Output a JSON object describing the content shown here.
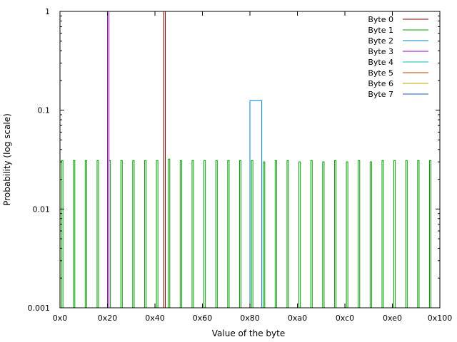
{
  "chart_data": {
    "type": "line",
    "title": "",
    "xlabel": "Value of the byte",
    "ylabel": "Probability (log scale)",
    "x_scale": "linear",
    "y_scale": "log",
    "xlim": [
      0,
      256
    ],
    "ylim": [
      0.001,
      1
    ],
    "x_ticks": [
      {
        "value": 0,
        "label": "0x0"
      },
      {
        "value": 32,
        "label": "0x20"
      },
      {
        "value": 64,
        "label": "0x40"
      },
      {
        "value": 96,
        "label": "0x60"
      },
      {
        "value": 128,
        "label": "0x80"
      },
      {
        "value": 160,
        "label": "0xa0"
      },
      {
        "value": 192,
        "label": "0xc0"
      },
      {
        "value": 224,
        "label": "0xe0"
      },
      {
        "value": 256,
        "label": "0x100"
      }
    ],
    "y_ticks": [
      {
        "value": 0.001,
        "label": "0.001"
      },
      {
        "value": 0.01,
        "label": "0.01"
      },
      {
        "value": 0.1,
        "label": "0.1"
      },
      {
        "value": 1,
        "label": "1"
      }
    ],
    "grid": false,
    "legend_position": "top-right",
    "series": [
      {
        "name": "Byte 0",
        "color": "#800000",
        "spikes": [
          {
            "x_start": 70,
            "x_end": 71,
            "y": 1.0
          }
        ]
      },
      {
        "name": "Byte 1",
        "color": "#00a000",
        "spikes": [
          {
            "x_start": 1,
            "x_end": 2,
            "y": 0.031
          },
          {
            "x_start": 9,
            "x_end": 10,
            "y": 0.031
          },
          {
            "x_start": 17,
            "x_end": 18,
            "y": 0.031
          },
          {
            "x_start": 25,
            "x_end": 26,
            "y": 0.031
          },
          {
            "x_start": 33,
            "x_end": 34,
            "y": 0.031
          },
          {
            "x_start": 41,
            "x_end": 42,
            "y": 0.031
          },
          {
            "x_start": 49,
            "x_end": 50,
            "y": 0.031
          },
          {
            "x_start": 57,
            "x_end": 58,
            "y": 0.031
          },
          {
            "x_start": 65,
            "x_end": 66,
            "y": 0.031
          },
          {
            "x_start": 73,
            "x_end": 74,
            "y": 0.032
          },
          {
            "x_start": 81,
            "x_end": 82,
            "y": 0.031
          },
          {
            "x_start": 89,
            "x_end": 90,
            "y": 0.031
          },
          {
            "x_start": 97,
            "x_end": 98,
            "y": 0.031
          },
          {
            "x_start": 105,
            "x_end": 106,
            "y": 0.031
          },
          {
            "x_start": 113,
            "x_end": 114,
            "y": 0.031
          },
          {
            "x_start": 121,
            "x_end": 122,
            "y": 0.031
          },
          {
            "x_start": 129,
            "x_end": 130,
            "y": 0.031
          },
          {
            "x_start": 137,
            "x_end": 138,
            "y": 0.03
          },
          {
            "x_start": 145,
            "x_end": 146,
            "y": 0.031
          },
          {
            "x_start": 153,
            "x_end": 154,
            "y": 0.031
          },
          {
            "x_start": 161,
            "x_end": 162,
            "y": 0.03
          },
          {
            "x_start": 169,
            "x_end": 170,
            "y": 0.031
          },
          {
            "x_start": 177,
            "x_end": 178,
            "y": 0.03
          },
          {
            "x_start": 185,
            "x_end": 186,
            "y": 0.031
          },
          {
            "x_start": 193,
            "x_end": 194,
            "y": 0.03
          },
          {
            "x_start": 201,
            "x_end": 202,
            "y": 0.031
          },
          {
            "x_start": 209,
            "x_end": 210,
            "y": 0.03
          },
          {
            "x_start": 217,
            "x_end": 218,
            "y": 0.031
          },
          {
            "x_start": 225,
            "x_end": 226,
            "y": 0.031
          },
          {
            "x_start": 233,
            "x_end": 234,
            "y": 0.031
          },
          {
            "x_start": 241,
            "x_end": 242,
            "y": 0.031
          },
          {
            "x_start": 249,
            "x_end": 250,
            "y": 0.031
          }
        ]
      },
      {
        "name": "Byte 2",
        "color": "#0080c0",
        "spikes": [
          {
            "x_start": 128,
            "x_end": 136,
            "y": 0.125
          }
        ]
      },
      {
        "name": "Byte 3",
        "color": "#a000c0",
        "spikes": [
          {
            "x_start": 32,
            "x_end": 33,
            "y": 1.0
          }
        ]
      },
      {
        "name": "Byte 4",
        "color": "#00c0c0",
        "spikes": []
      },
      {
        "name": "Byte 5",
        "color": "#c04000",
        "spikes": []
      },
      {
        "name": "Byte 6",
        "color": "#c0a000",
        "spikes": []
      },
      {
        "name": "Byte 7",
        "color": "#2050c0",
        "spikes": []
      }
    ]
  }
}
